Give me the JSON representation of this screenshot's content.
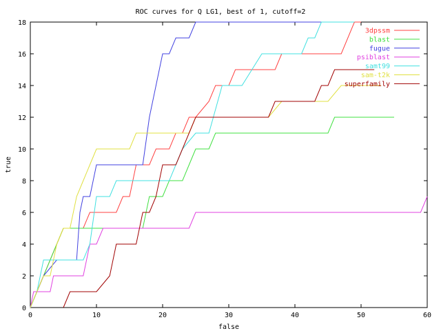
{
  "chart_data": {
    "type": "line",
    "title": "ROC curves for Q LG1, best of 1, cutoff=2",
    "xlabel": "false",
    "ylabel": "true",
    "xlim": [
      0,
      60
    ],
    "ylim": [
      0,
      18
    ],
    "xticks": [
      0,
      10,
      20,
      30,
      40,
      50,
      60
    ],
    "yticks": [
      0,
      2,
      4,
      6,
      8,
      10,
      12,
      14,
      16,
      18
    ],
    "grid": false,
    "legend_position": "top-right",
    "series": [
      {
        "name": "3dpssm",
        "color": "#ff4040",
        "points": [
          [
            0,
            0
          ],
          [
            1,
            1
          ],
          [
            2,
            2
          ],
          [
            3,
            3
          ],
          [
            4,
            4
          ],
          [
            5,
            5
          ],
          [
            6,
            5
          ],
          [
            7,
            5
          ],
          [
            8,
            5
          ],
          [
            9,
            6
          ],
          [
            13,
            6
          ],
          [
            14,
            7
          ],
          [
            15,
            7
          ],
          [
            16,
            9
          ],
          [
            18,
            9
          ],
          [
            19,
            10
          ],
          [
            21,
            10
          ],
          [
            22,
            11
          ],
          [
            23,
            11
          ],
          [
            24,
            12
          ],
          [
            25,
            12
          ],
          [
            27,
            13
          ],
          [
            28,
            14
          ],
          [
            30,
            14
          ],
          [
            31,
            15
          ],
          [
            37,
            15
          ],
          [
            38,
            16
          ],
          [
            47,
            16
          ],
          [
            49,
            18
          ],
          [
            50,
            18
          ]
        ]
      },
      {
        "name": "blast",
        "color": "#40e040",
        "points": [
          [
            0,
            0
          ],
          [
            1,
            1
          ],
          [
            2,
            2
          ],
          [
            3,
            3
          ],
          [
            4,
            4
          ],
          [
            5,
            5
          ],
          [
            10,
            5
          ],
          [
            11,
            5
          ],
          [
            17,
            5
          ],
          [
            17.5,
            6
          ],
          [
            18,
            7
          ],
          [
            20,
            7
          ],
          [
            21,
            8
          ],
          [
            23,
            8
          ],
          [
            24,
            9
          ],
          [
            25,
            10
          ],
          [
            27,
            10
          ],
          [
            28,
            11
          ],
          [
            45,
            11
          ],
          [
            46,
            12
          ],
          [
            55,
            12
          ]
        ]
      },
      {
        "name": "fugue",
        "color": "#4040e0",
        "points": [
          [
            0,
            0
          ],
          [
            1,
            1
          ],
          [
            2,
            2
          ],
          [
            3,
            2.5
          ],
          [
            4,
            3
          ],
          [
            7,
            3
          ],
          [
            7.5,
            6
          ],
          [
            8,
            7
          ],
          [
            9,
            7
          ],
          [
            10,
            9
          ],
          [
            17,
            9
          ],
          [
            18,
            12
          ],
          [
            19,
            14
          ],
          [
            20,
            16
          ],
          [
            21,
            16
          ],
          [
            22,
            17
          ],
          [
            24,
            17
          ],
          [
            25,
            18
          ],
          [
            44,
            18
          ]
        ]
      },
      {
        "name": "psiblast",
        "color": "#e040e0",
        "points": [
          [
            0,
            0
          ],
          [
            0.5,
            1
          ],
          [
            3,
            1
          ],
          [
            3.5,
            2
          ],
          [
            8,
            2
          ],
          [
            9,
            4
          ],
          [
            10,
            4
          ],
          [
            11,
            5
          ],
          [
            23,
            5
          ],
          [
            24,
            5
          ],
          [
            25,
            6
          ],
          [
            59,
            6
          ],
          [
            60,
            7
          ]
        ]
      },
      {
        "name": "samt99",
        "color": "#40e0e0",
        "points": [
          [
            0,
            0
          ],
          [
            1,
            1
          ],
          [
            2,
            3
          ],
          [
            5,
            3
          ],
          [
            6,
            3
          ],
          [
            8,
            3
          ],
          [
            9,
            4
          ],
          [
            10,
            7
          ],
          [
            12,
            7
          ],
          [
            13,
            8
          ],
          [
            21,
            8
          ],
          [
            22,
            9
          ],
          [
            23,
            10
          ],
          [
            25,
            11
          ],
          [
            27,
            11
          ],
          [
            29,
            14
          ],
          [
            32,
            14
          ],
          [
            35,
            16
          ],
          [
            41,
            16
          ],
          [
            42,
            17
          ],
          [
            43,
            17
          ],
          [
            44,
            18
          ],
          [
            49,
            18
          ]
        ]
      },
      {
        "name": "sam-t2k",
        "color": "#e0e040",
        "points": [
          [
            0,
            0
          ],
          [
            1,
            1
          ],
          [
            2,
            2
          ],
          [
            3,
            2
          ],
          [
            4,
            4
          ],
          [
            5,
            5
          ],
          [
            6,
            5
          ],
          [
            7,
            7
          ],
          [
            8,
            8
          ],
          [
            9,
            9
          ],
          [
            10,
            10
          ],
          [
            15,
            10
          ],
          [
            16,
            11
          ],
          [
            19,
            11
          ],
          [
            24,
            11
          ],
          [
            25,
            12
          ],
          [
            36,
            12
          ],
          [
            38,
            13
          ],
          [
            45,
            13
          ],
          [
            47,
            14
          ],
          [
            53,
            14
          ]
        ]
      },
      {
        "name": "superfamily",
        "color": "#a00000",
        "points": [
          [
            5,
            0
          ],
          [
            6,
            1
          ],
          [
            10,
            1
          ],
          [
            12,
            2
          ],
          [
            13,
            4
          ],
          [
            16,
            4
          ],
          [
            17,
            6
          ],
          [
            18,
            6
          ],
          [
            19,
            7
          ],
          [
            20,
            9
          ],
          [
            22,
            9
          ],
          [
            23,
            10
          ],
          [
            24,
            11
          ],
          [
            25,
            12
          ],
          [
            36,
            12
          ],
          [
            37,
            13
          ],
          [
            43,
            13
          ],
          [
            44,
            14
          ],
          [
            45,
            14
          ],
          [
            46,
            15
          ],
          [
            52,
            15
          ]
        ]
      }
    ]
  }
}
